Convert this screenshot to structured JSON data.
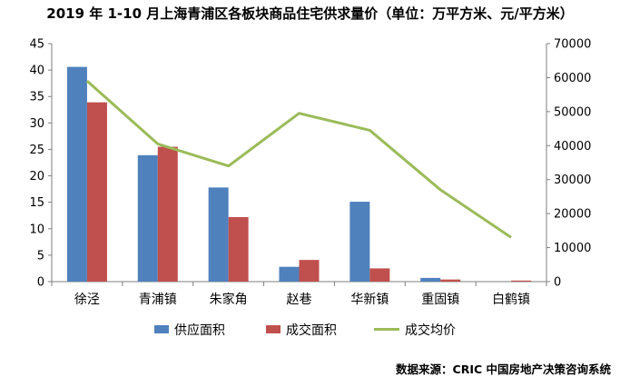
{
  "chart_data": {
    "type": "bar",
    "title": "2019 年 1-10 月上海青浦区各板块商品住宅供求量价（单位：万平方米、元/平方米）",
    "categories": [
      "徐泾",
      "青浦镇",
      "朱家角",
      "赵巷",
      "华新镇",
      "重固镇",
      "白鹤镇"
    ],
    "series": [
      {
        "name": "供应面积",
        "type": "bar",
        "axis": "left",
        "color": "#4f81bd",
        "values": [
          40.6,
          23.9,
          17.8,
          2.8,
          15.1,
          0.7,
          0
        ]
      },
      {
        "name": "成交面积",
        "type": "bar",
        "axis": "left",
        "color": "#c0504d",
        "values": [
          33.9,
          25.5,
          12.2,
          4.1,
          2.5,
          0.4,
          0.2
        ]
      },
      {
        "name": "成交均价",
        "type": "line",
        "axis": "right",
        "color": "#9bbb59",
        "values": [
          59000,
          40500,
          34000,
          49500,
          44500,
          27000,
          13000
        ]
      }
    ],
    "left_axis": {
      "min": 0,
      "max": 45,
      "step": 5,
      "ticks": [
        "0",
        "5",
        "10",
        "15",
        "20",
        "25",
        "30",
        "35",
        "40",
        "45"
      ]
    },
    "right_axis": {
      "min": 0,
      "max": 70000,
      "step": 10000,
      "ticks": [
        "0",
        "10000",
        "20000",
        "30000",
        "40000",
        "50000",
        "60000",
        "70000"
      ]
    },
    "legend": {
      "position": "bottom"
    },
    "grid": false
  },
  "source": "数据来源：CRIC 中国房地产决策咨询系统"
}
